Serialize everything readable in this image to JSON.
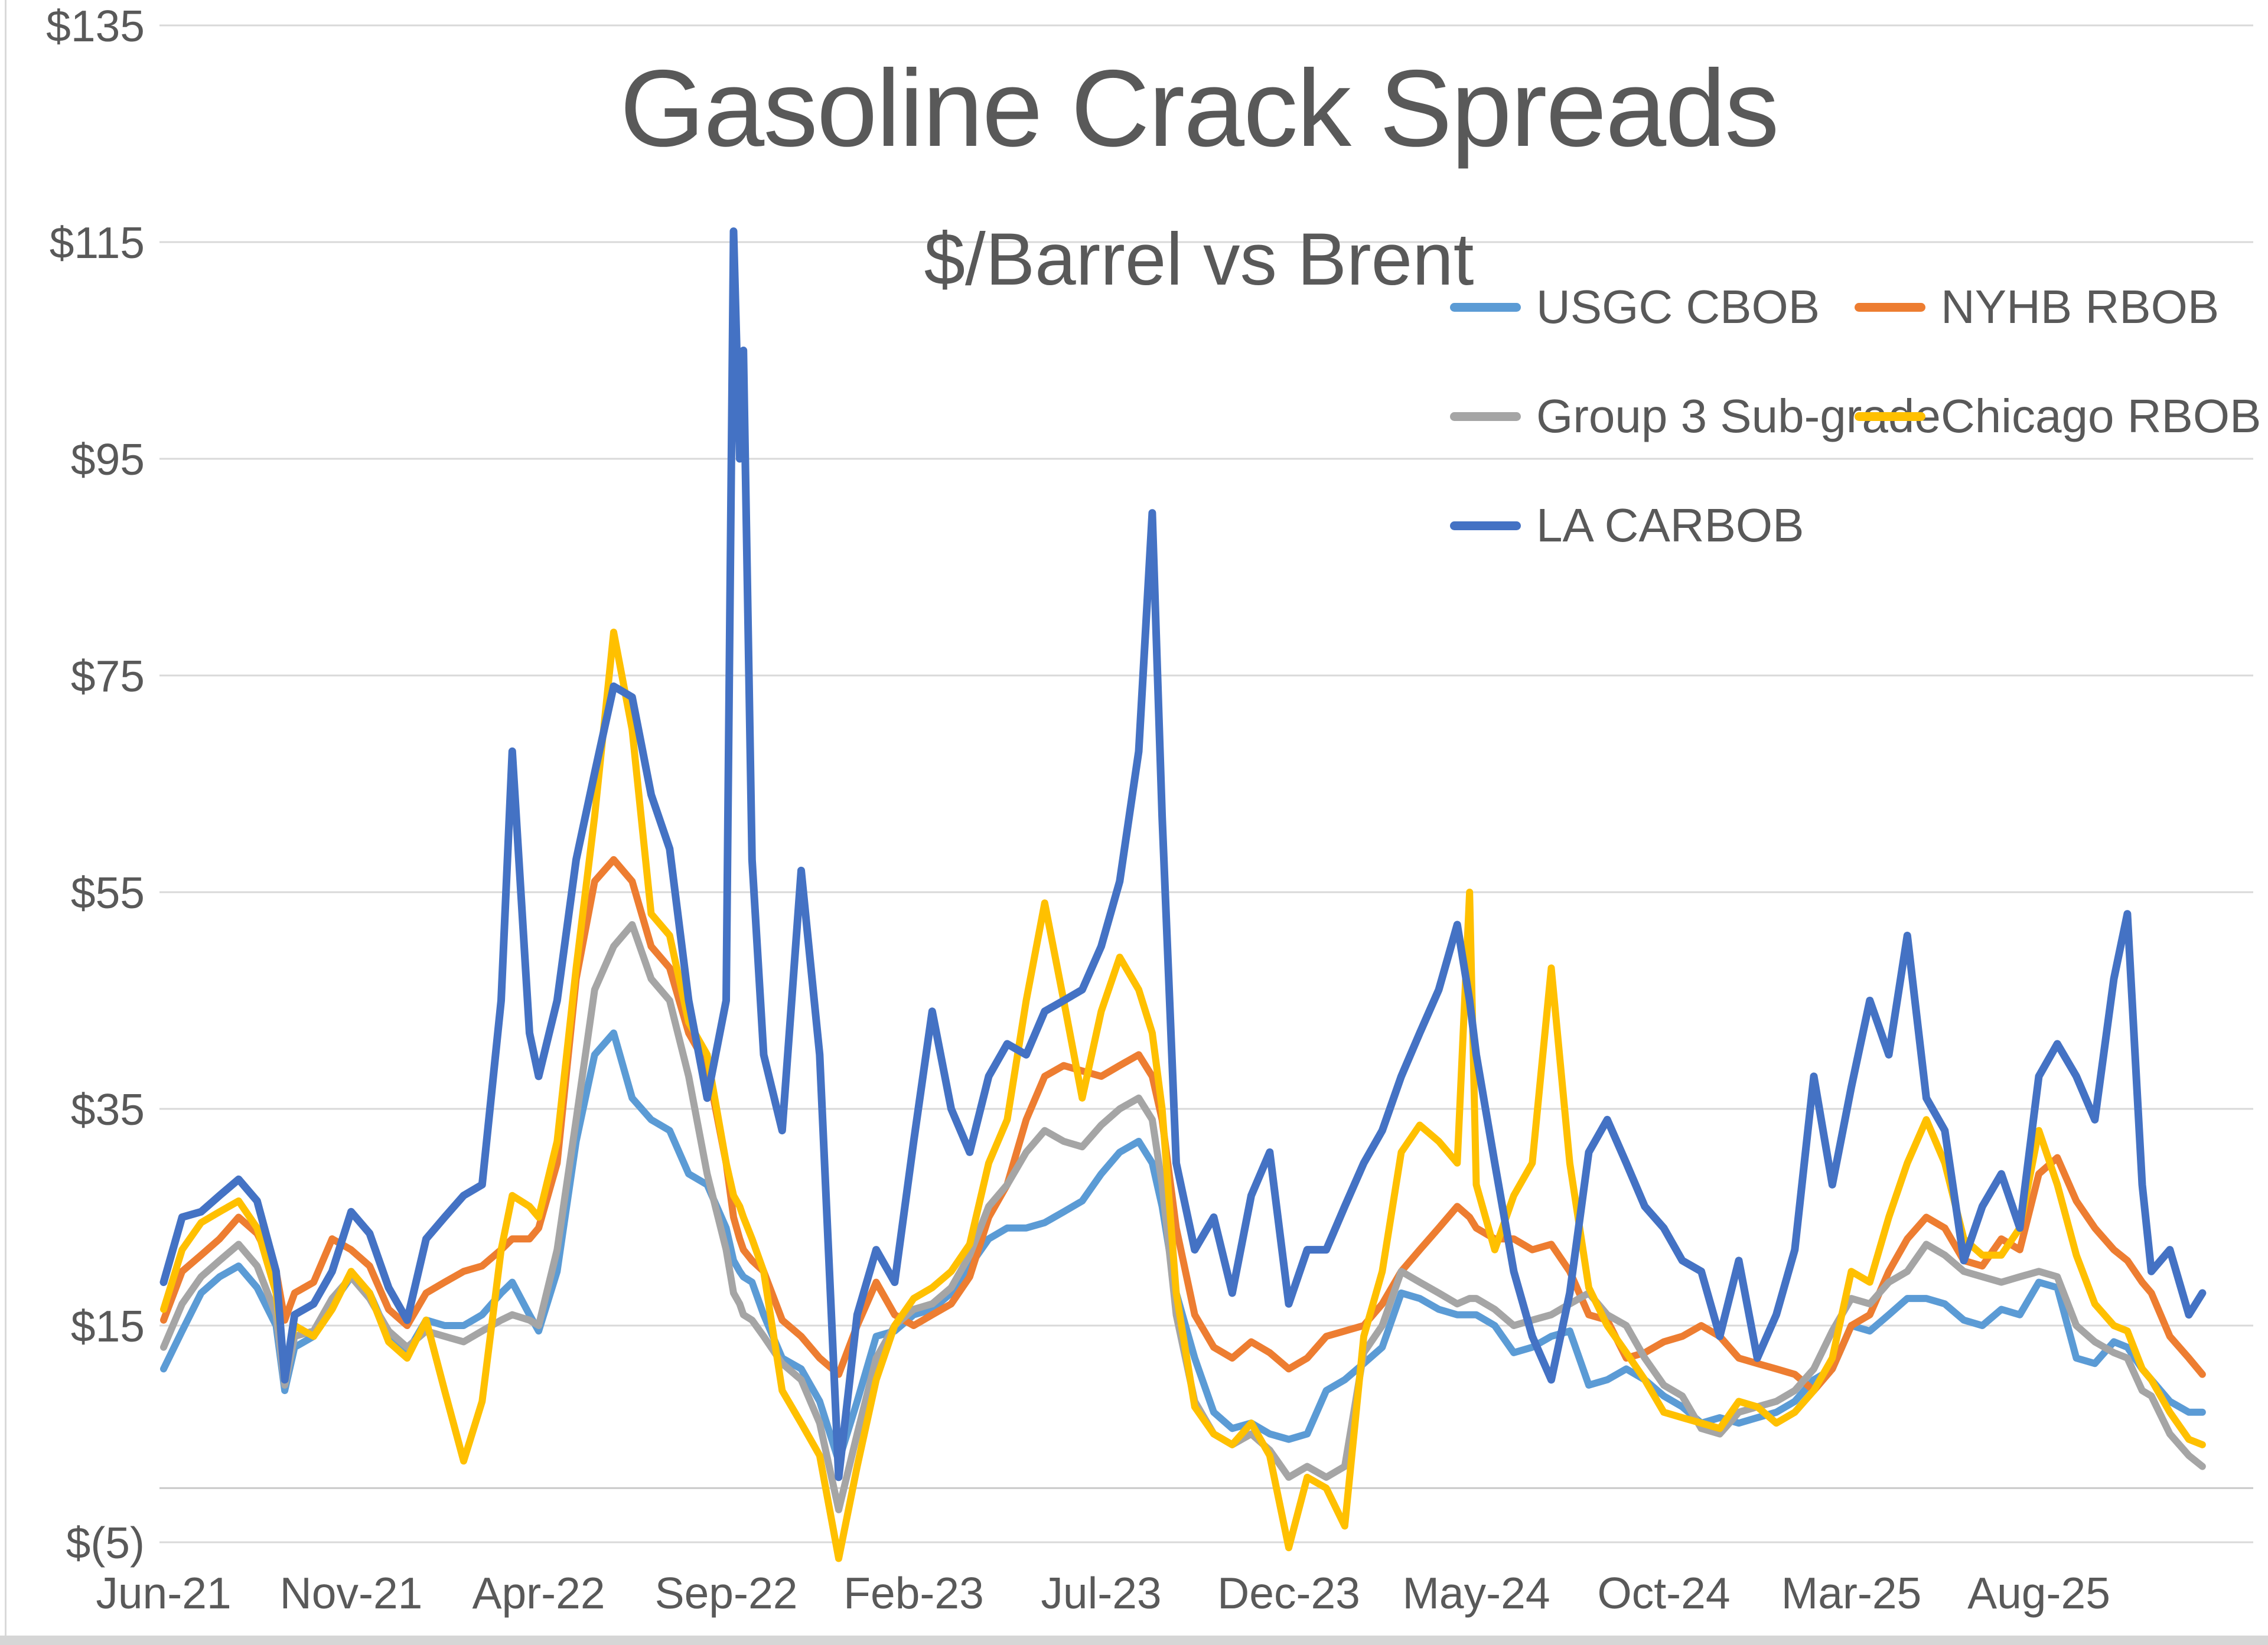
{
  "header": {
    "title": "Gasoline Crack Spreads",
    "subtitle": "$/Barrel vs Brent",
    "text_color": "#595959"
  },
  "chart_data": {
    "type": "line",
    "title": "Gasoline Crack Spreads",
    "subtitle": "$/Barrel vs Brent",
    "xlabel": "",
    "ylabel": "$/Barrel vs Brent",
    "ylim": [
      -5,
      135
    ],
    "grid": true,
    "gridline_color": "#D9D9D9",
    "zero_axis_value": 0,
    "legend_position": "top-right",
    "y_ticks": [
      {
        "label": "$135",
        "value": 135
      },
      {
        "label": "$115",
        "value": 115
      },
      {
        "label": "$95",
        "value": 95
      },
      {
        "label": "$75",
        "value": 75
      },
      {
        "label": "$55",
        "value": 55
      },
      {
        "label": "$35",
        "value": 35
      },
      {
        "label": "$15",
        "value": 15
      },
      {
        "label": "$(5)",
        "value": -5
      }
    ],
    "x_ticks": [
      {
        "label": "Jun-21",
        "date": "2021-06-01"
      },
      {
        "label": "Nov-21",
        "date": "2021-11-01"
      },
      {
        "label": "Apr-22",
        "date": "2022-04-01"
      },
      {
        "label": "Sep-22",
        "date": "2022-09-01"
      },
      {
        "label": "Feb-23",
        "date": "2023-02-01"
      },
      {
        "label": "Jul-23",
        "date": "2023-07-01"
      },
      {
        "label": "Dec-23",
        "date": "2023-12-01"
      },
      {
        "label": "May-24",
        "date": "2024-05-01"
      },
      {
        "label": "Oct-24",
        "date": "2024-10-01"
      },
      {
        "label": "Mar-25",
        "date": "2025-03-01"
      },
      {
        "label": "Aug-25",
        "date": "2025-08-01"
      }
    ],
    "x": [
      "2021-06-01",
      "2021-06-16",
      "2021-07-01",
      "2021-07-16",
      "2021-08-01",
      "2021-08-16",
      "2021-09-01",
      "2021-09-08",
      "2021-09-16",
      "2021-10-01",
      "2021-10-16",
      "2021-11-01",
      "2021-11-16",
      "2021-12-01",
      "2021-12-16",
      "2022-01-01",
      "2022-01-16",
      "2022-02-01",
      "2022-02-16",
      "2022-03-01",
      "2022-03-10",
      "2022-03-24",
      "2022-04-01",
      "2022-04-16",
      "2022-05-01",
      "2022-05-16",
      "2022-06-01",
      "2022-06-16",
      "2022-07-01",
      "2022-07-16",
      "2022-08-01",
      "2022-08-16",
      "2022-09-01",
      "2022-09-07",
      "2022-09-12",
      "2022-09-15",
      "2022-09-22",
      "2022-10-01",
      "2022-10-16",
      "2022-11-01",
      "2022-11-16",
      "2022-12-01",
      "2022-12-16",
      "2023-01-01",
      "2023-01-16",
      "2023-02-01",
      "2023-02-16",
      "2023-03-01",
      "2023-03-16",
      "2023-04-01",
      "2023-04-16",
      "2023-05-01",
      "2023-05-16",
      "2023-06-01",
      "2023-06-16",
      "2023-07-01",
      "2023-07-16",
      "2023-08-01",
      "2023-08-12",
      "2023-08-20",
      "2023-09-01",
      "2023-09-16",
      "2023-10-01",
      "2023-10-16",
      "2023-11-01",
      "2023-11-16",
      "2023-12-01",
      "2023-12-16",
      "2024-01-01",
      "2024-01-16",
      "2024-02-01",
      "2024-02-16",
      "2024-03-01",
      "2024-03-16",
      "2024-04-01",
      "2024-04-16",
      "2024-04-26",
      "2024-05-01",
      "2024-05-16",
      "2024-06-01",
      "2024-06-16",
      "2024-07-01",
      "2024-07-16",
      "2024-08-01",
      "2024-08-16",
      "2024-09-01",
      "2024-09-16",
      "2024-10-01",
      "2024-10-16",
      "2024-11-01",
      "2024-11-16",
      "2024-12-01",
      "2024-12-16",
      "2025-01-01",
      "2025-01-16",
      "2025-02-01",
      "2025-02-16",
      "2025-03-01",
      "2025-03-16",
      "2025-04-01",
      "2025-04-16",
      "2025-05-01",
      "2025-05-16",
      "2025-06-01",
      "2025-06-16",
      "2025-07-01",
      "2025-07-16",
      "2025-08-01",
      "2025-08-16",
      "2025-09-01",
      "2025-09-16",
      "2025-10-01",
      "2025-10-12",
      "2025-10-24",
      "2025-11-01",
      "2025-11-16",
      "2025-12-01",
      "2025-12-12"
    ],
    "series": [
      {
        "name": "USGC CBOB",
        "color": "#5B9BD5",
        "values": [
          11,
          14.5,
          18,
          19.5,
          20.5,
          18.5,
          15,
          9,
          13,
          14,
          17,
          19.5,
          18,
          14,
          12.5,
          15.5,
          15,
          15,
          16,
          18,
          19,
          16,
          14.5,
          20,
          32,
          40,
          42,
          36,
          34,
          33,
          29,
          28,
          24,
          21,
          20,
          19.5,
          19,
          16,
          12,
          11,
          8,
          2.5,
          8,
          14,
          14.5,
          16,
          16.5,
          18,
          20.5,
          23,
          24,
          24,
          24.5,
          25.5,
          26.5,
          29,
          31,
          32,
          30,
          26,
          18,
          12,
          7,
          5.5,
          6,
          5,
          4.5,
          5,
          9,
          10,
          11.5,
          13,
          18,
          17.5,
          16.5,
          16,
          16,
          16,
          15,
          12.5,
          13,
          14,
          14.5,
          9.5,
          10,
          11,
          10,
          8.5,
          7.5,
          6,
          6.5,
          6,
          6.5,
          7,
          8,
          10,
          11,
          15,
          14.5,
          16,
          17.5,
          17.5,
          17,
          15.5,
          15,
          16.5,
          16,
          19,
          18.5,
          12,
          11.5,
          13.5,
          13,
          11,
          10,
          8,
          7,
          7
        ]
      },
      {
        "name": "NYHB RBOB",
        "color": "#ED7D31",
        "values": [
          15.5,
          20,
          21.5,
          23,
          25,
          23.5,
          20,
          15.5,
          18,
          19,
          23,
          22,
          20.5,
          16.5,
          15,
          18,
          19,
          20,
          20.5,
          22,
          23,
          23,
          24,
          30,
          47,
          56,
          58,
          56,
          50,
          48,
          42,
          39,
          30,
          25,
          23,
          22,
          21,
          20,
          15.5,
          14,
          12,
          10.5,
          15,
          19,
          16,
          15,
          16,
          17,
          19.5,
          25,
          28,
          34,
          38,
          39,
          38.5,
          38,
          39,
          40,
          38,
          34,
          24,
          16,
          13,
          12,
          13.5,
          12.5,
          11,
          12,
          14,
          14.5,
          15,
          17,
          20,
          22,
          24,
          26,
          25,
          24,
          23,
          23,
          22,
          22.5,
          20,
          16,
          15.5,
          12,
          12.5,
          13.5,
          14,
          15,
          14,
          12,
          11.5,
          11,
          10.5,
          9,
          11,
          15,
          16,
          20,
          23,
          25,
          24,
          21,
          20.5,
          23,
          22,
          29,
          30.5,
          26.5,
          24,
          22,
          21,
          19,
          18,
          14,
          12,
          10.5
        ]
      },
      {
        "name": "Group 3 Sub-grade",
        "color": "#A5A5A5",
        "values": [
          13,
          17,
          19.5,
          21,
          22.5,
          20.5,
          16,
          9.5,
          14,
          14.5,
          17.5,
          19.5,
          17.5,
          14.5,
          13,
          14.5,
          14,
          13.5,
          14.5,
          15.5,
          16,
          15.5,
          15,
          22,
          34,
          46,
          50,
          52,
          47,
          45,
          38,
          29,
          22,
          18,
          17,
          16,
          15.5,
          14,
          11.5,
          10,
          6,
          -2,
          5,
          12,
          15,
          16.5,
          17,
          18.5,
          21.5,
          26,
          28,
          31,
          33,
          32,
          31.5,
          33.5,
          35,
          36,
          34,
          28,
          16,
          8,
          5,
          4,
          5,
          3.5,
          1,
          2,
          1,
          2,
          12.5,
          15,
          20,
          19,
          18,
          17,
          17.5,
          17.5,
          16.5,
          15,
          15.5,
          16,
          17,
          18,
          16,
          15,
          12,
          9.5,
          8.5,
          5.5,
          5,
          7,
          7.5,
          8,
          9,
          11,
          14.5,
          17.5,
          17,
          19,
          20,
          22.5,
          21.5,
          20,
          19.5,
          19,
          19.5,
          20,
          19.5,
          15,
          13.5,
          12.5,
          12,
          9,
          8.5,
          5,
          3,
          2
        ]
      },
      {
        "name": "Chicago RBOB",
        "color": "#FFC000",
        "values": [
          16.5,
          22,
          24.5,
          25.5,
          26.5,
          24,
          18,
          11,
          15,
          14,
          16.5,
          20,
          18,
          13.5,
          12,
          15.5,
          9,
          2.5,
          8,
          22,
          27,
          26,
          25,
          32,
          48,
          62,
          79,
          70,
          53,
          51,
          43,
          40,
          30,
          27,
          26,
          25,
          23,
          20,
          9,
          6,
          3,
          -6.5,
          2,
          10,
          15,
          17.5,
          18.5,
          20,
          22.5,
          30,
          34,
          45,
          54,
          45,
          36,
          44,
          49,
          46,
          42,
          35,
          18,
          7.5,
          5,
          4,
          6,
          3,
          -5.5,
          1,
          0,
          -3.5,
          14,
          20,
          31,
          33.5,
          32,
          30,
          55,
          28,
          22,
          27,
          30,
          48,
          30,
          18.5,
          15,
          12.5,
          10,
          7,
          6.5,
          6,
          5.5,
          8,
          7.5,
          6,
          7,
          9,
          12,
          20,
          19,
          25,
          30,
          34,
          30,
          23,
          21.5,
          21.5,
          24,
          33,
          28,
          21.5,
          17,
          15,
          14.5,
          11,
          10,
          7,
          4.5,
          4
        ]
      },
      {
        "name": "LA CARBOB",
        "color": "#4472C4",
        "values": [
          19,
          25,
          25.5,
          27,
          28.5,
          26.5,
          20,
          10,
          16,
          17,
          20,
          25.5,
          23.5,
          18.5,
          15.5,
          23,
          25,
          27,
          28,
          45,
          68,
          42,
          38,
          45,
          58,
          66,
          74,
          73,
          64,
          59,
          45,
          36,
          45,
          116,
          95,
          105,
          58,
          40,
          33,
          57,
          40,
          1,
          16,
          22,
          19,
          32,
          44,
          35,
          31,
          38,
          41,
          40,
          44,
          45,
          46,
          50,
          56,
          68,
          90,
          62,
          30,
          22,
          25,
          18,
          27,
          31,
          17,
          22,
          22,
          26,
          30,
          33,
          38,
          42,
          46,
          52,
          45,
          40,
          30,
          20,
          14,
          10,
          18,
          31,
          34,
          30,
          26,
          24,
          21,
          20,
          14,
          21,
          12,
          16,
          22,
          38,
          28,
          37,
          45,
          40,
          51,
          36,
          33,
          21,
          26,
          29,
          24,
          38,
          41,
          38,
          34,
          47,
          53,
          28,
          20,
          22,
          16,
          18
        ]
      }
    ]
  }
}
